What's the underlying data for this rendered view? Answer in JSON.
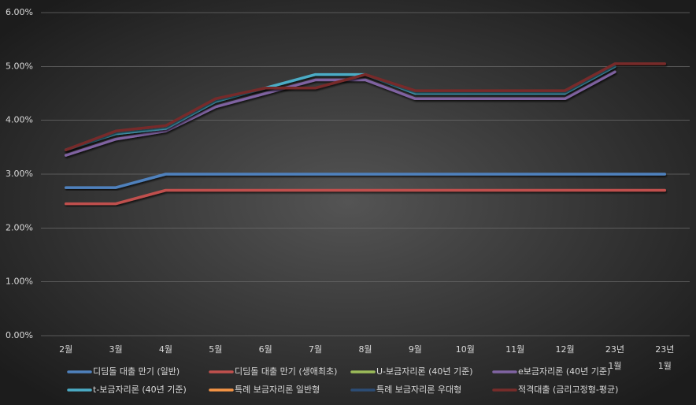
{
  "chart_data": {
    "type": "line",
    "categories": [
      "2월",
      "3월",
      "4월",
      "5월",
      "6월",
      "7월",
      "8월",
      "9월",
      "10월",
      "11월",
      "12월",
      [
        "23년",
        "1월"
      ],
      [
        "23년",
        "1월"
      ]
    ],
    "ylim": [
      0,
      6
    ],
    "yticks": [
      {
        "value": 0,
        "label": "0.00%"
      },
      {
        "value": 1,
        "label": "1.00%"
      },
      {
        "value": 2,
        "label": "2.00%"
      },
      {
        "value": 3,
        "label": "3.00%"
      },
      {
        "value": 4,
        "label": "4.00%"
      },
      {
        "value": 5,
        "label": "5.00%"
      },
      {
        "value": 6,
        "label": "6.00%"
      }
    ],
    "grid": true,
    "legend": "bottom",
    "series": [
      {
        "name": "디딤돌 대출 만기 (일반)",
        "color": "#4f81bd",
        "values": [
          2.75,
          2.75,
          3.0,
          3.0,
          3.0,
          3.0,
          3.0,
          3.0,
          3.0,
          3.0,
          3.0,
          3.0,
          3.0
        ]
      },
      {
        "name": "디딤돌 대출 만기 (생애최초)",
        "color": "#c0504d",
        "values": [
          2.45,
          2.45,
          2.7,
          2.7,
          2.7,
          2.7,
          2.7,
          2.7,
          2.7,
          2.7,
          2.7,
          2.7,
          2.7
        ]
      },
      {
        "name": "U-보금자리론 (40년 기준)",
        "color": "#9bbb59",
        "values": [
          null,
          null,
          null,
          null,
          null,
          null,
          null,
          null,
          null,
          null,
          null,
          null,
          null
        ]
      },
      {
        "name": "e보금자리론 (40년 기준)",
        "color": "#8064a2",
        "values": [
          3.35,
          3.65,
          3.8,
          4.25,
          4.5,
          4.75,
          4.75,
          4.4,
          4.4,
          4.4,
          4.4,
          4.9,
          null
        ]
      },
      {
        "name": "t-보금자리론 (40년 기준)",
        "color": "#4bacc6",
        "values": [
          3.45,
          3.75,
          3.85,
          4.35,
          4.6,
          4.85,
          4.85,
          4.5,
          4.5,
          4.5,
          4.5,
          5.0,
          null
        ]
      },
      {
        "name": "특례 보금자리론 일반형",
        "color": "#f79646",
        "values": [
          null,
          null,
          null,
          null,
          null,
          null,
          null,
          null,
          null,
          null,
          null,
          null,
          null
        ]
      },
      {
        "name": "특례 보금자리론 우대형",
        "color": "#2c4d75",
        "values": [
          null,
          null,
          null,
          null,
          null,
          null,
          null,
          null,
          null,
          null,
          null,
          null,
          null
        ]
      },
      {
        "name": "적격대출 (금리고정형-평균)",
        "color": "#772c2a",
        "values": [
          3.45,
          3.8,
          3.9,
          4.4,
          4.6,
          4.6,
          4.85,
          4.55,
          4.55,
          4.55,
          4.55,
          5.05,
          5.05
        ]
      }
    ]
  }
}
